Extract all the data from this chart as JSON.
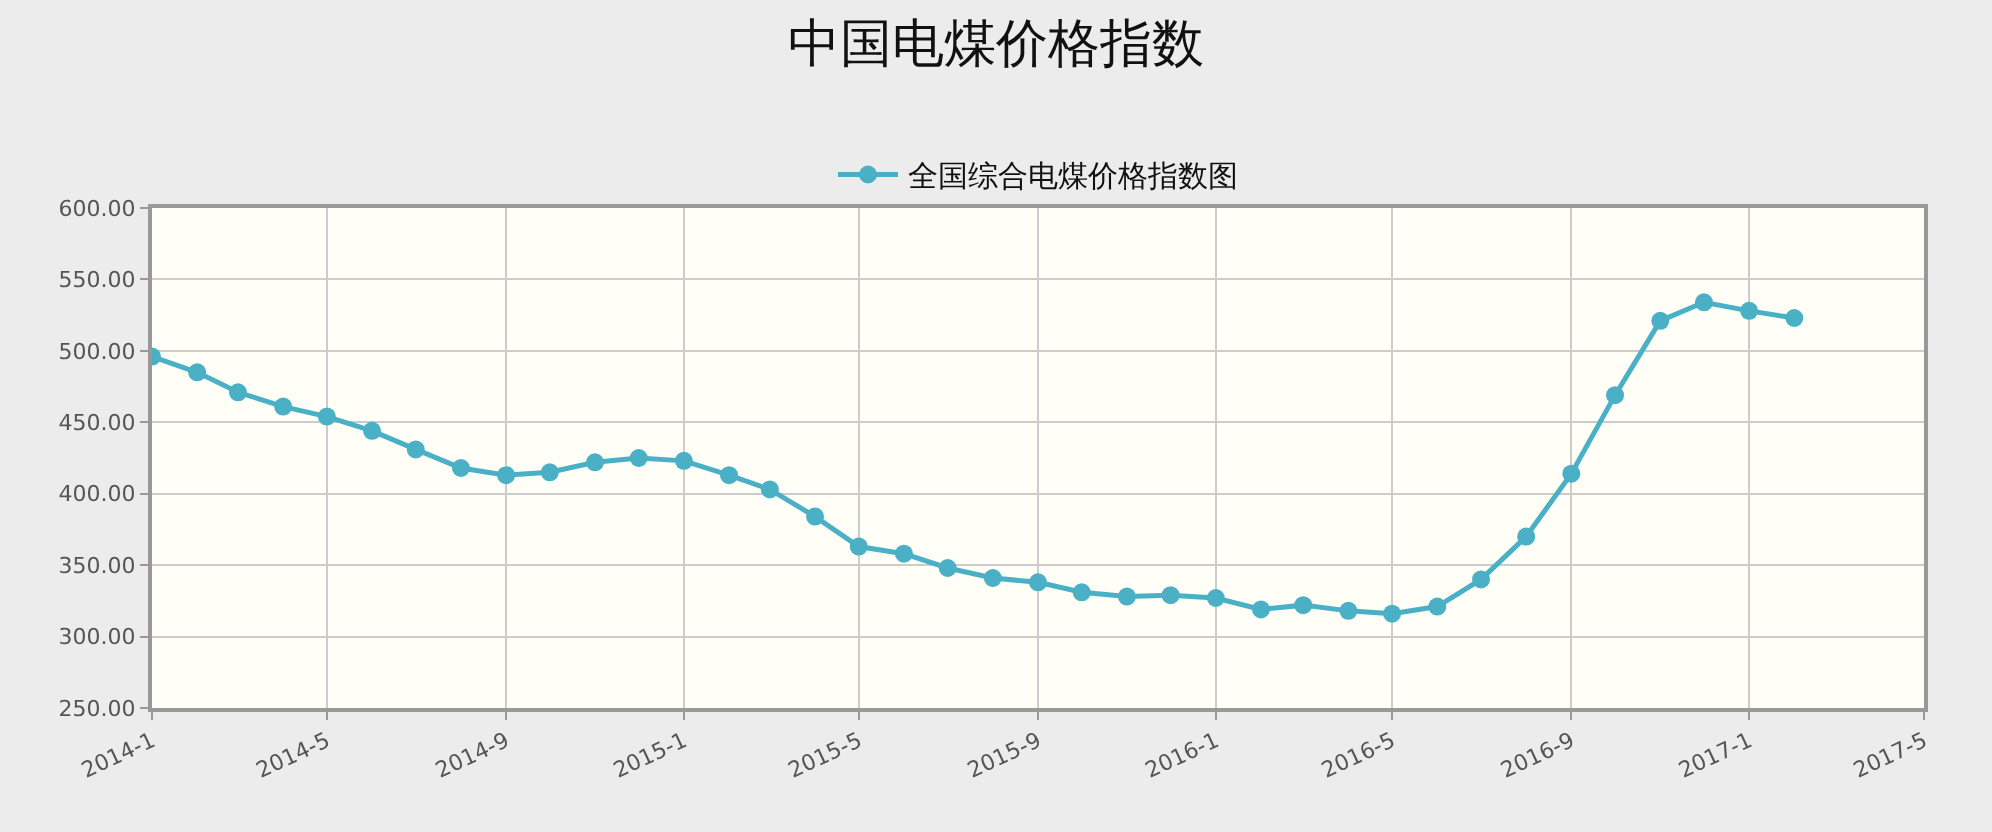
{
  "chart_data": {
    "type": "line",
    "title": "中国电煤价格指数",
    "x": [
      "2014-01",
      "2014-02",
      "2014-03",
      "2014-04",
      "2014-05",
      "2014-06",
      "2014-07",
      "2014-08",
      "2014-09",
      "2014-10",
      "2014-11",
      "2014-12",
      "2015-01",
      "2015-02",
      "2015-03",
      "2015-04",
      "2015-05",
      "2015-06",
      "2015-07",
      "2015-08",
      "2015-09",
      "2015-10",
      "2015-11",
      "2015-12",
      "2016-01",
      "2016-02",
      "2016-03",
      "2016-04",
      "2016-05",
      "2016-06",
      "2016-07",
      "2016-08",
      "2016-09",
      "2016-10",
      "2016-11",
      "2016-12",
      "2017-01",
      "2017-02"
    ],
    "series": [
      {
        "name": "全国综合电煤价格指数图",
        "color": "#4ab0c6",
        "values": [
          496,
          485,
          471,
          461,
          454,
          444,
          431,
          418,
          413,
          415,
          422,
          425,
          423,
          413,
          403,
          384,
          363,
          358,
          348,
          341,
          338,
          331,
          328,
          329,
          327,
          319,
          322,
          318,
          316,
          321,
          340,
          370,
          414,
          469,
          521,
          534,
          528,
          523
        ]
      }
    ],
    "xlim": [
      "2014-01",
      "2017-05"
    ],
    "xticks": [
      {
        "value": "2014-01",
        "label": "2014-1"
      },
      {
        "value": "2014-05",
        "label": "2014-5"
      },
      {
        "value": "2014-09",
        "label": "2014-9"
      },
      {
        "value": "2015-01",
        "label": "2015-1"
      },
      {
        "value": "2015-05",
        "label": "2015-5"
      },
      {
        "value": "2015-09",
        "label": "2015-9"
      },
      {
        "value": "2016-01",
        "label": "2016-1"
      },
      {
        "value": "2016-05",
        "label": "2016-5"
      },
      {
        "value": "2016-09",
        "label": "2016-9"
      },
      {
        "value": "2017-01",
        "label": "2017-1"
      },
      {
        "value": "2017-05",
        "label": "2017-5"
      }
    ],
    "ylim": [
      250,
      600
    ],
    "yticks": [
      {
        "value": 250,
        "label": "250.00"
      },
      {
        "value": 300,
        "label": "300.00"
      },
      {
        "value": 350,
        "label": "350.00"
      },
      {
        "value": 400,
        "label": "400.00"
      },
      {
        "value": 450,
        "label": "450.00"
      },
      {
        "value": 500,
        "label": "500.00"
      },
      {
        "value": 550,
        "label": "550.00"
      },
      {
        "value": 600,
        "label": "600.00"
      }
    ],
    "grid": true,
    "legend": "top",
    "marker": "circle",
    "line_style": "solid"
  }
}
